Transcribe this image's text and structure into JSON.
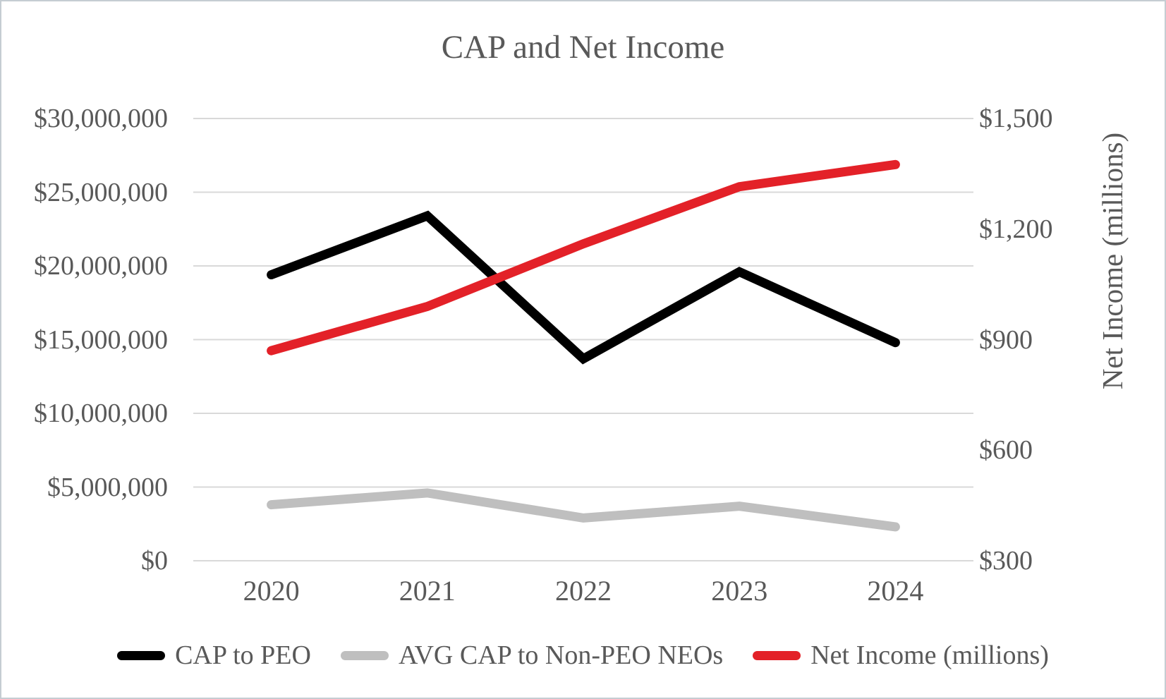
{
  "window": {
    "background": "#ffffff",
    "border_color": "#c5cdd2",
    "text_color": "#595959",
    "gridline_color": "#d9d9d9"
  },
  "chart_data": {
    "type": "line",
    "title": "CAP and Net Income",
    "categories": [
      "2020",
      "2021",
      "2022",
      "2023",
      "2024"
    ],
    "series": [
      {
        "name": "CAP to PEO",
        "axis": "left",
        "color": "#000000",
        "values": [
          19400000,
          23400000,
          13700000,
          19600000,
          14800000
        ]
      },
      {
        "name": "AVG CAP to Non-PEO NEOs",
        "axis": "left",
        "color": "#bfbfbf",
        "values": [
          3800000,
          4600000,
          2900000,
          3700000,
          2300000
        ]
      },
      {
        "name": "Net Income (millions)",
        "axis": "right",
        "color": "#e32128",
        "values": [
          870,
          990,
          1160,
          1315,
          1375
        ]
      }
    ],
    "left_axis": {
      "min": 0,
      "max": 30000000,
      "tick_values": [
        0,
        5000000,
        10000000,
        15000000,
        20000000,
        25000000,
        30000000
      ],
      "tick_labels": [
        "$0",
        "$5,000,000",
        "$10,000,000",
        "$15,000,000",
        "$20,000,000",
        "$25,000,000",
        "$30,000,000"
      ]
    },
    "right_axis": {
      "title": "Net Income (millions)",
      "min": 300,
      "max": 1500,
      "tick_values": [
        300,
        600,
        900,
        1200,
        1500
      ],
      "tick_labels": [
        "$300",
        "$600",
        "$900",
        "$1,200",
        "$1,500"
      ]
    },
    "legend": [
      "CAP to PEO",
      "AVG CAP to Non-PEO NEOs",
      "Net Income (millions)"
    ],
    "legend_position": "bottom",
    "grid": true
  }
}
